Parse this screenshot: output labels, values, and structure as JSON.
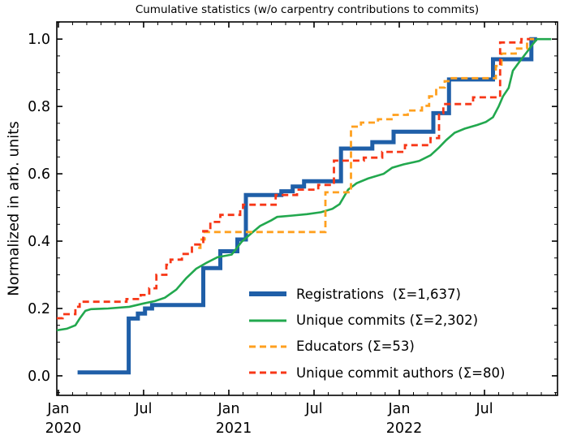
{
  "chart_data": {
    "type": "line",
    "title": "Cumulative statistics (w/o carpentry contributions to commits)",
    "xlabel": "",
    "ylabel": "Normalized in arb. units",
    "x_unit": "months since 2020-01-01",
    "xlim": [
      -0.11,
      35.14
    ],
    "ylim": [
      -0.058,
      1.051
    ],
    "grid": false,
    "legend_position": "lower right",
    "x_major_ticks": [
      {
        "pos": 0,
        "label": "Jan",
        "year": "2020"
      },
      {
        "pos": 6,
        "label": "Jul",
        "year": ""
      },
      {
        "pos": 12,
        "label": "Jan",
        "year": "2021"
      },
      {
        "pos": 18,
        "label": "Jul",
        "year": ""
      },
      {
        "pos": 24,
        "label": "Jan",
        "year": "2022"
      },
      {
        "pos": 30,
        "label": "Jul",
        "year": ""
      }
    ],
    "x_minor": {
      "from": 0,
      "to": 35,
      "step": 1
    },
    "y_major_ticks": [
      {
        "value": 0.0,
        "label": "0.0"
      },
      {
        "value": 0.2,
        "label": "0.2"
      },
      {
        "value": 0.4,
        "label": "0.4"
      },
      {
        "value": 0.6,
        "label": "0.6"
      },
      {
        "value": 0.8,
        "label": "0.8"
      },
      {
        "value": 1.0,
        "label": "1.0"
      }
    ],
    "y_minor": {
      "from": -0.05,
      "to": 1.05,
      "step": 0.05
    },
    "series": [
      {
        "id": "registrations",
        "name": "Registrations",
        "legend": "Registrations  (Σ=1,637)",
        "total": "1,637",
        "color": "#1f5fa8",
        "width": 5,
        "dash": "",
        "draw": "steps",
        "points": [
          [
            1.35,
            0.01
          ],
          [
            4.95,
            0.17
          ],
          [
            5.6,
            0.185
          ],
          [
            6.1,
            0.2
          ],
          [
            6.6,
            0.21
          ],
          [
            10.2,
            0.32
          ],
          [
            11.4,
            0.37
          ],
          [
            12.6,
            0.405
          ],
          [
            13.2,
            0.537
          ],
          [
            15.7,
            0.548
          ],
          [
            16.5,
            0.562
          ],
          [
            17.3,
            0.578
          ],
          [
            19.9,
            0.675
          ],
          [
            22.1,
            0.694
          ],
          [
            23.6,
            0.725
          ],
          [
            26.4,
            0.78
          ],
          [
            27.5,
            0.88
          ],
          [
            30.6,
            0.94
          ],
          [
            33.3,
            1.0
          ],
          [
            33.7,
            1.0
          ]
        ]
      },
      {
        "id": "unique_commits",
        "name": "Unique commits",
        "legend": "Unique commits (Σ=2,302)",
        "total": "2,302",
        "color": "#22a84e",
        "width": 2.6,
        "dash": "",
        "draw": "line",
        "points": [
          [
            -0.11,
            0.135
          ],
          [
            0.6,
            0.14
          ],
          [
            1.2,
            0.15
          ],
          [
            1.5,
            0.17
          ],
          [
            1.9,
            0.193
          ],
          [
            2.3,
            0.198
          ],
          [
            3.5,
            0.2
          ],
          [
            5.0,
            0.205
          ],
          [
            6.0,
            0.215
          ],
          [
            6.8,
            0.222
          ],
          [
            7.5,
            0.232
          ],
          [
            8.3,
            0.256
          ],
          [
            9.0,
            0.29
          ],
          [
            9.7,
            0.318
          ],
          [
            10.4,
            0.335
          ],
          [
            11.2,
            0.352
          ],
          [
            12.2,
            0.36
          ],
          [
            12.9,
            0.398
          ],
          [
            13.6,
            0.424
          ],
          [
            14.2,
            0.445
          ],
          [
            15.0,
            0.462
          ],
          [
            15.4,
            0.472
          ],
          [
            16.5,
            0.476
          ],
          [
            17.5,
            0.48
          ],
          [
            18.5,
            0.486
          ],
          [
            19.3,
            0.496
          ],
          [
            19.8,
            0.51
          ],
          [
            20.4,
            0.553
          ],
          [
            21.0,
            0.572
          ],
          [
            21.8,
            0.586
          ],
          [
            22.9,
            0.6
          ],
          [
            23.5,
            0.618
          ],
          [
            24.3,
            0.628
          ],
          [
            25.4,
            0.638
          ],
          [
            26.2,
            0.655
          ],
          [
            26.8,
            0.678
          ],
          [
            27.3,
            0.7
          ],
          [
            27.9,
            0.722
          ],
          [
            28.6,
            0.734
          ],
          [
            29.5,
            0.745
          ],
          [
            30.1,
            0.754
          ],
          [
            30.6,
            0.768
          ],
          [
            31.0,
            0.8
          ],
          [
            31.3,
            0.83
          ],
          [
            31.7,
            0.855
          ],
          [
            32.0,
            0.906
          ],
          [
            32.5,
            0.935
          ],
          [
            33.0,
            0.962
          ],
          [
            33.4,
            0.985
          ],
          [
            33.7,
            1.0
          ],
          [
            34.7,
            1.0
          ]
        ]
      },
      {
        "id": "educators",
        "name": "Educators",
        "legend": "Educators (Σ=53)",
        "total": "53",
        "color": "#ffa01f",
        "width": 2.8,
        "dash": "8 5",
        "draw": "steps",
        "points": [
          [
            9.85,
            0.38
          ],
          [
            10.0,
            0.405
          ],
          [
            10.3,
            0.427
          ],
          [
            18.8,
            0.545
          ],
          [
            20.6,
            0.74
          ],
          [
            21.3,
            0.752
          ],
          [
            22.5,
            0.762
          ],
          [
            23.6,
            0.775
          ],
          [
            24.6,
            0.788
          ],
          [
            25.6,
            0.802
          ],
          [
            26.1,
            0.83
          ],
          [
            26.6,
            0.856
          ],
          [
            27.2,
            0.875
          ],
          [
            27.7,
            0.884
          ],
          [
            30.8,
            0.92
          ],
          [
            31.2,
            0.957
          ],
          [
            32.2,
            0.972
          ],
          [
            33.0,
            1.0
          ],
          [
            33.5,
            1.0
          ]
        ]
      },
      {
        "id": "unique_commit_authors",
        "name": "Unique commit authors",
        "legend": "Unique commit authors (Σ=80)",
        "total": "80",
        "color": "#f73717",
        "width": 2.8,
        "dash": "8 5",
        "draw": "steps",
        "points": [
          [
            -0.11,
            0.171
          ],
          [
            0.3,
            0.183
          ],
          [
            1.2,
            0.205
          ],
          [
            1.5,
            0.22
          ],
          [
            4.8,
            0.228
          ],
          [
            5.8,
            0.24
          ],
          [
            6.4,
            0.26
          ],
          [
            6.9,
            0.3
          ],
          [
            7.6,
            0.33
          ],
          [
            7.9,
            0.345
          ],
          [
            8.7,
            0.362
          ],
          [
            9.4,
            0.39
          ],
          [
            10.2,
            0.43
          ],
          [
            10.7,
            0.457
          ],
          [
            11.4,
            0.478
          ],
          [
            12.8,
            0.495
          ],
          [
            13.0,
            0.508
          ],
          [
            15.3,
            0.537
          ],
          [
            16.8,
            0.553
          ],
          [
            18.3,
            0.567
          ],
          [
            19.4,
            0.639
          ],
          [
            21.5,
            0.648
          ],
          [
            22.8,
            0.665
          ],
          [
            24.4,
            0.685
          ],
          [
            26.2,
            0.706
          ],
          [
            26.8,
            0.78
          ],
          [
            27.1,
            0.807
          ],
          [
            29.2,
            0.827
          ],
          [
            31.1,
            0.99
          ],
          [
            32.6,
            1.0
          ],
          [
            33.2,
            1.0
          ]
        ]
      }
    ]
  }
}
